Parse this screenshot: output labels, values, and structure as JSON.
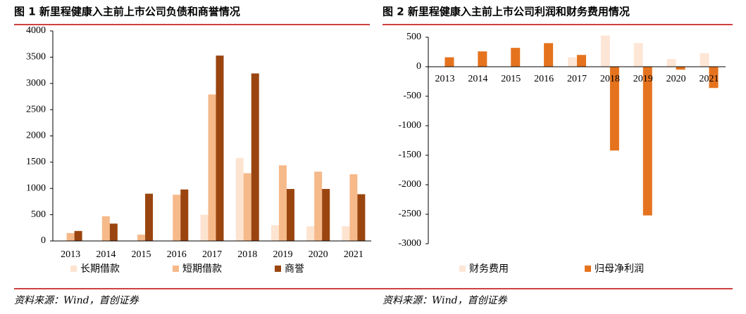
{
  "chart_data": [
    {
      "type": "bar",
      "title": "图 1 新里程健康入主前上市公司负债和商誉情况",
      "source": "资料来源：Wind，首创证券",
      "categories": [
        "2013",
        "2014",
        "2015",
        "2016",
        "2017",
        "2018",
        "2019",
        "2020",
        "2021"
      ],
      "series": [
        {
          "name": "长期借款",
          "color": "#fde4d0",
          "values": [
            0,
            0,
            0,
            0,
            500,
            1580,
            300,
            280,
            280
          ]
        },
        {
          "name": "短期借款",
          "color": "#f6b98a",
          "values": [
            150,
            470,
            120,
            880,
            2790,
            1290,
            1440,
            1320,
            1270
          ]
        },
        {
          "name": "商誉",
          "color": "#9a4510",
          "values": [
            190,
            330,
            900,
            980,
            3530,
            3190,
            990,
            990,
            890
          ]
        }
      ],
      "ylim": [
        0,
        4000
      ],
      "yticks": [
        0,
        500,
        1000,
        1500,
        2000,
        2500,
        3000,
        3500,
        4000
      ]
    },
    {
      "type": "bar",
      "title": "图 2 新里程健康入主前上市公司利润和财务费用情况",
      "source": "资料来源：Wind，首创证券",
      "categories": [
        "2013",
        "2014",
        "2015",
        "2016",
        "2017",
        "2018",
        "2019",
        "2020",
        "2021"
      ],
      "series": [
        {
          "name": "财务费用",
          "color": "#fde6d6",
          "values": [
            0,
            0,
            0,
            0,
            160,
            530,
            400,
            130,
            230
          ]
        },
        {
          "name": "归母净利润",
          "color": "#e5731e",
          "values": [
            160,
            260,
            320,
            400,
            200,
            -1420,
            -2520,
            -50,
            -360
          ]
        }
      ],
      "ylim": [
        -3000,
        500
      ],
      "yticks": [
        -3000,
        -2500,
        -2000,
        -1500,
        -1000,
        -500,
        0,
        500
      ]
    }
  ]
}
